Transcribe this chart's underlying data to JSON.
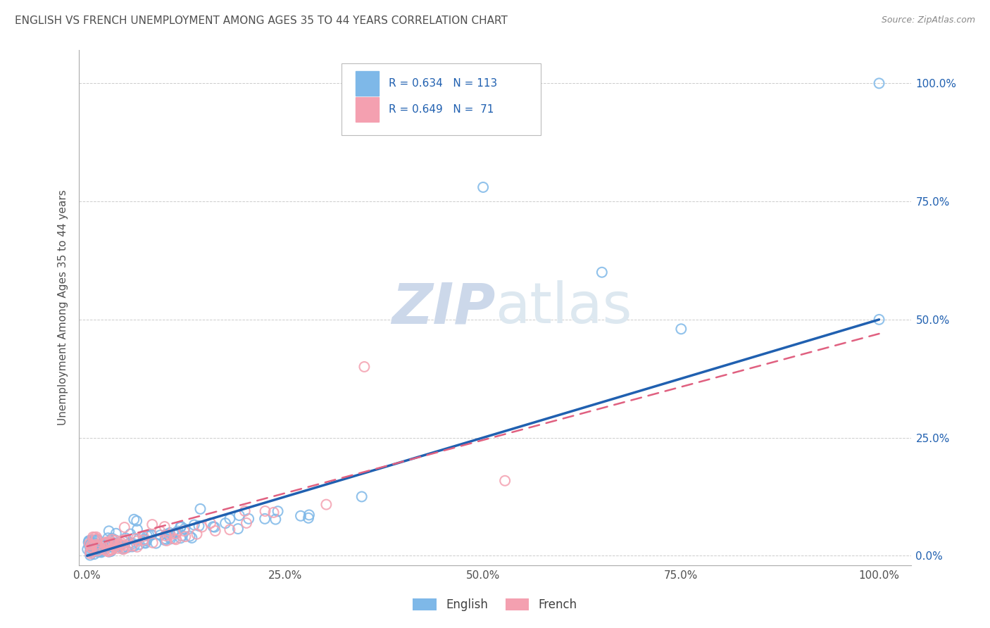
{
  "title": "ENGLISH VS FRENCH UNEMPLOYMENT AMONG AGES 35 TO 44 YEARS CORRELATION CHART",
  "source": "Source: ZipAtlas.com",
  "ylabel": "Unemployment Among Ages 35 to 44 years",
  "x_tick_labels": [
    "0.0%",
    "25.0%",
    "50.0%",
    "75.0%",
    "100.0%"
  ],
  "y_tick_labels": [
    "0.0%",
    "25.0%",
    "50.0%",
    "75.0%",
    "100.0%"
  ],
  "x_ticks": [
    0,
    25,
    50,
    75,
    100
  ],
  "y_ticks": [
    0,
    25,
    50,
    75,
    100
  ],
  "xlim": [
    -1,
    104
  ],
  "ylim": [
    -2,
    107
  ],
  "english_color": "#7eb8e8",
  "french_color": "#f4a0b0",
  "english_line_color": "#2060b0",
  "french_line_color": "#e06080",
  "english_R": 0.634,
  "english_N": 113,
  "french_R": 0.649,
  "french_N": 71,
  "watermark": "ZIPatlas",
  "watermark_color": "#ccd8ea",
  "background_color": "#ffffff",
  "grid_color": "#cccccc",
  "title_color": "#505050",
  "legend_label_color": "#2060b0",
  "eng_line_x0": 0,
  "eng_line_y0": 0,
  "eng_line_x1": 100,
  "eng_line_y1": 50,
  "fr_line_x0": 0,
  "fr_line_y0": 2,
  "fr_line_x1": 100,
  "fr_line_y1": 47
}
